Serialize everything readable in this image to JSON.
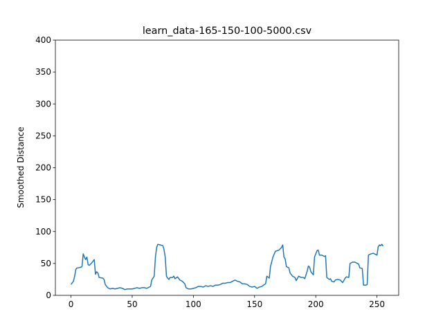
{
  "chart_data": {
    "type": "line",
    "title": "learn_data-165-150-100-5000.csv",
    "y_label": "Smoothed Distance",
    "x": [
      0,
      2,
      3,
      4,
      5,
      6,
      8,
      9,
      10,
      11,
      12,
      13,
      14,
      15,
      17,
      19,
      20,
      21,
      22,
      23,
      26,
      27,
      28,
      30,
      32,
      34,
      36,
      38,
      40,
      42,
      44,
      46,
      50,
      52,
      54,
      56,
      58,
      60,
      62,
      64,
      65,
      66,
      68,
      69,
      70,
      71,
      73,
      75,
      76,
      77,
      78,
      79,
      80,
      81,
      83,
      84,
      85,
      87,
      89,
      91,
      93,
      94,
      96,
      98,
      100,
      102,
      104,
      106,
      108,
      110,
      112,
      114,
      116,
      118,
      120,
      122,
      124,
      126,
      128,
      130,
      132,
      134,
      136,
      138,
      140,
      142,
      144,
      146,
      148,
      150,
      152,
      154,
      156,
      158,
      159,
      160,
      162,
      163,
      165,
      167,
      170,
      172,
      173,
      174,
      175,
      176,
      178,
      179,
      181,
      183,
      184,
      186,
      188,
      190,
      191,
      193,
      194,
      195,
      196,
      198,
      199,
      201,
      202,
      203,
      205,
      207,
      208,
      209,
      211,
      212,
      213,
      215,
      216,
      218,
      220,
      222,
      224,
      225,
      227,
      228,
      230,
      232,
      235,
      236,
      238,
      239,
      241,
      242,
      243,
      245,
      247,
      249,
      250,
      251,
      252,
      253,
      254,
      255
    ],
    "series": [
      {
        "color": "#1f77b4",
        "values": [
          17,
          22,
          30,
          41,
          43,
          43,
          44,
          45,
          65,
          60,
          56,
          60,
          48,
          47,
          51,
          56,
          33,
          37,
          35,
          28,
          27,
          25,
          17,
          12,
          10,
          11,
          10,
          11,
          12,
          11,
          9,
          10,
          10,
          11,
          12,
          11,
          12,
          12,
          11,
          13,
          14,
          24,
          30,
          60,
          75,
          80,
          79,
          78,
          72,
          60,
          30,
          27,
          25,
          28,
          28,
          30,
          26,
          29,
          24,
          22,
          18,
          12,
          10,
          10,
          11,
          12,
          14,
          14,
          13,
          15,
          14,
          15,
          14,
          16,
          16,
          17,
          19,
          19,
          20,
          20,
          22,
          24,
          22,
          21,
          18,
          18,
          17,
          14,
          13,
          14,
          11,
          13,
          14,
          17,
          18,
          30,
          27,
          45,
          60,
          69,
          71,
          75,
          79,
          60,
          57,
          45,
          43,
          35,
          30,
          28,
          23,
          30,
          28,
          28,
          26,
          38,
          46,
          44,
          37,
          32,
          60,
          70,
          71,
          63,
          63,
          61,
          62,
          28,
          25,
          26,
          22,
          21,
          24,
          25,
          24,
          20,
          27,
          29,
          28,
          50,
          52,
          52,
          49,
          43,
          42,
          16,
          16,
          17,
          63,
          65,
          66,
          64,
          63,
          76,
          79,
          78,
          80,
          77
        ]
      }
    ],
    "xlim": [
      -12.75,
      267.75
    ],
    "ylim": [
      0,
      400
    ],
    "xticks": [
      0,
      50,
      100,
      150,
      200,
      250
    ],
    "yticks": [
      0,
      50,
      100,
      150,
      200,
      250,
      300,
      350,
      400
    ]
  }
}
